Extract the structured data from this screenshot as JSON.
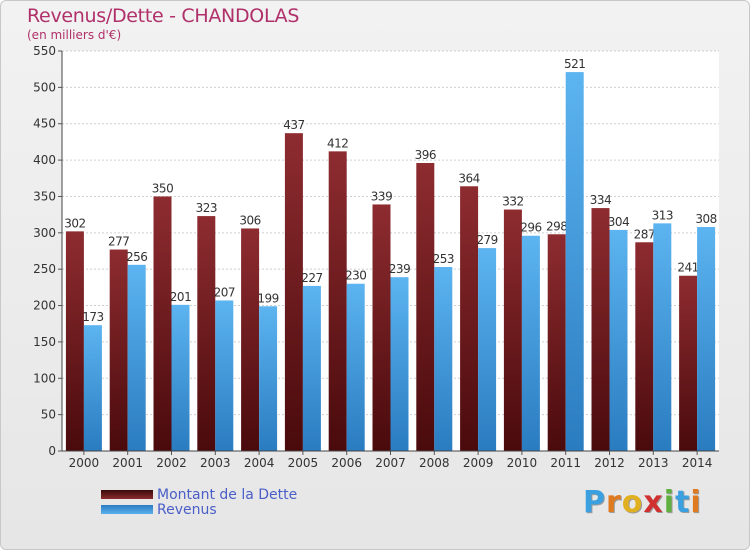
{
  "title": "Revenus/Dette - CHANDOLAS",
  "subtitle": "(en milliers d'€)",
  "brand": "Proxiti",
  "chart_data": {
    "type": "bar",
    "categories": [
      "2000",
      "2001",
      "2002",
      "2003",
      "2004",
      "2005",
      "2006",
      "2007",
      "2008",
      "2009",
      "2010",
      "2011",
      "2012",
      "2013",
      "2014"
    ],
    "series": [
      {
        "name": "Montant de la Dette",
        "color": "#7a1a1e",
        "values": [
          302,
          277,
          350,
          323,
          306,
          437,
          412,
          339,
          396,
          364,
          332,
          298,
          334,
          287,
          241
        ]
      },
      {
        "name": "Revenus",
        "color": "#4fa6e6",
        "values": [
          173,
          256,
          201,
          207,
          199,
          227,
          230,
          239,
          253,
          279,
          296,
          521,
          304,
          313,
          308
        ]
      }
    ],
    "ylim": [
      0,
      550
    ],
    "yticks": [
      0,
      50,
      100,
      150,
      200,
      250,
      300,
      350,
      400,
      450,
      500,
      550
    ],
    "grid": true,
    "legend": "bottom-left"
  }
}
